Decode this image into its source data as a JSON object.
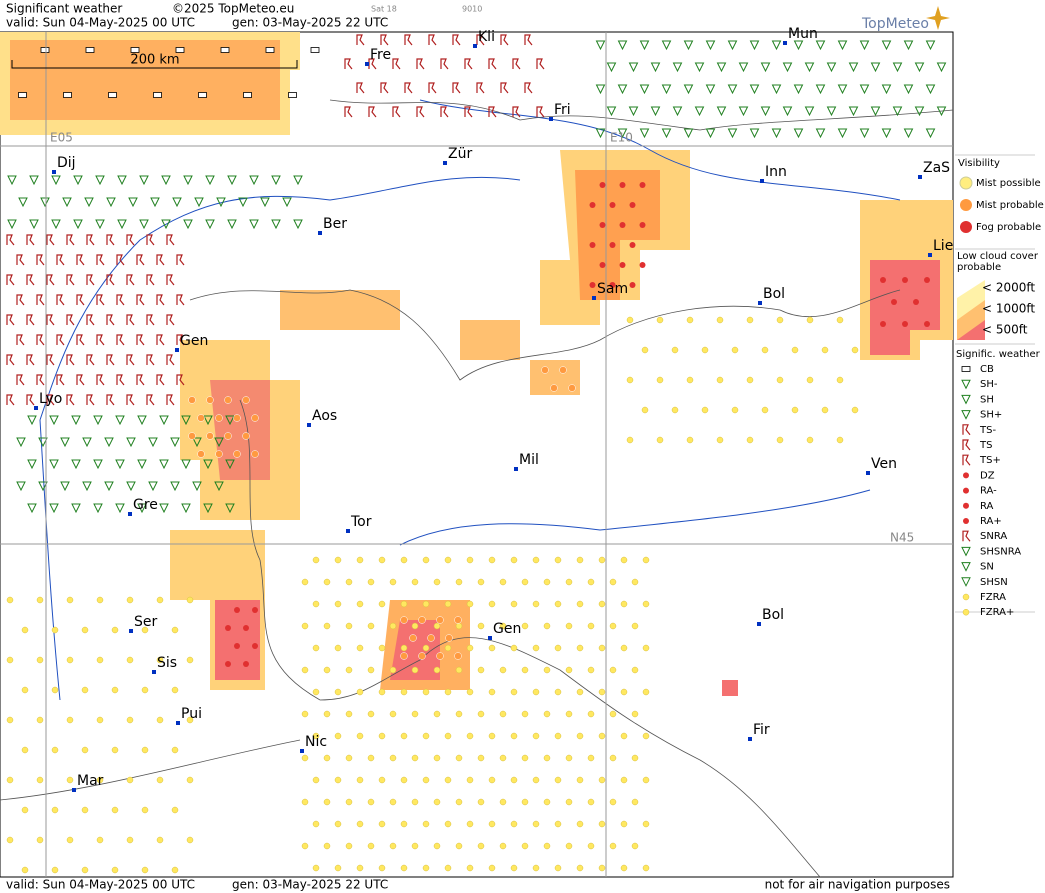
{
  "header": {
    "title": "Significant weather",
    "copyright": "©2025 TopMeteo.eu",
    "sat": "Sat 18",
    "code": "9010",
    "valid": "valid:  Sun  04-May-2025  00 UTC",
    "gen": "gen:  03-May-2025  22 UTC",
    "logo": "TopMeteo"
  },
  "map": {
    "scale": "200 km",
    "grid_labels": [
      "E05",
      "E10",
      "N45"
    ],
    "cities": [
      "Kli",
      "Mun",
      "Fre",
      "Fri",
      "Dij",
      "Zür",
      "Inn",
      "ZaS",
      "Ber",
      "Lie",
      "Sam",
      "Bol",
      "Gen",
      "Lyo",
      "Aos",
      "Mil",
      "Ven",
      "Gre",
      "Tor",
      "Ser",
      "Gen",
      "Bol",
      "Sis",
      "Pui",
      "Nic",
      "Fir",
      "Mar"
    ]
  },
  "legend": {
    "visibility": {
      "title": "Visibility",
      "items": [
        "Mist possible",
        "Mist probable",
        "Fog probable"
      ]
    },
    "low_cloud": {
      "title": "Low cloud cover probable",
      "items": [
        "< 2000ft",
        "< 1000ft",
        "<  500ft"
      ]
    },
    "weather": {
      "title": "Signific. weather",
      "items": [
        "CB",
        "SH-",
        "SH",
        "SH+",
        "TS-",
        "TS",
        "TS+",
        "DZ",
        "RA-",
        "RA",
        "RA+",
        "SNRA",
        "SHSNRA",
        "SN",
        "SHSN",
        "FZRA",
        "FZRA+"
      ]
    }
  },
  "footer": {
    "valid": "valid:  Sun  04-May-2025  00 UTC",
    "gen": "gen: 03-May-2025 22 UTC",
    "note": "not for air navigation purposes"
  }
}
